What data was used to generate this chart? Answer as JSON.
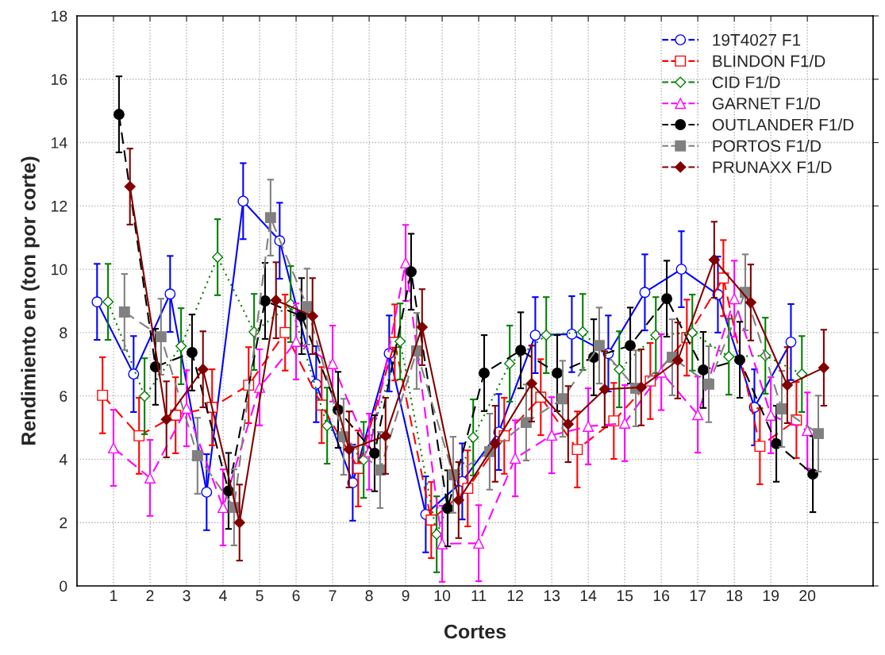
{
  "chart_data": {
    "type": "line",
    "xlabel": "Cortes",
    "ylabel": "Rendimiento en (ton por corte)",
    "xlim": [
      0,
      21.8
    ],
    "xticks": [
      1,
      2,
      3,
      4,
      5,
      6,
      7,
      8,
      9,
      10,
      11,
      12,
      13,
      14,
      15,
      16,
      17,
      18,
      19,
      20
    ],
    "ylim": [
      0,
      18
    ],
    "yticks": [
      0,
      2,
      4,
      6,
      8,
      10,
      12,
      14,
      16,
      18
    ],
    "grid": true,
    "legend": "top right",
    "series": [
      {
        "name": "19T4027 F1",
        "color": "#0000ff",
        "marker": "circle",
        "line_style": "solid",
        "x": [
          0.55,
          1.55,
          2.55,
          3.55,
          4.55,
          5.55,
          6.55,
          7.55,
          8.55,
          9.55,
          10.55,
          11.55,
          12.55,
          13.55,
          14.55,
          15.55,
          16.55,
          17.55,
          18.55,
          19.55
        ],
        "values": [
          8.97,
          6.69,
          9.22,
          2.96,
          12.15,
          10.9,
          6.37,
          3.26,
          7.34,
          2.26,
          3.3,
          4.86,
          7.92,
          7.95,
          7.34,
          9.27,
          10.0,
          9.2,
          5.64,
          7.7
        ],
        "errors": [
          1.2,
          1.2,
          1.2,
          1.2,
          1.2,
          1.2,
          1.2,
          1.2,
          1.2,
          1.2,
          1.2,
          1.2,
          1.2,
          1.2,
          1.2,
          1.2,
          1.2,
          1.2,
          1.2,
          1.2
        ]
      },
      {
        "name": "BLINDON F1/D",
        "color": "#ff0000",
        "marker": "square",
        "line_style": "dashed",
        "x": [
          0.7,
          1.7,
          2.7,
          3.7,
          4.7,
          5.7,
          6.7,
          7.7,
          8.7,
          9.7,
          10.7,
          11.7,
          12.7,
          13.7,
          14.7,
          15.7,
          16.7,
          17.7,
          18.7,
          19.7
        ],
        "values": [
          6.02,
          4.74,
          5.39,
          5.64,
          6.34,
          8.0,
          5.71,
          3.71,
          7.69,
          2.08,
          3.08,
          4.74,
          5.96,
          4.31,
          5.21,
          6.47,
          7.84,
          9.72,
          4.41,
          5.24
        ],
        "errors": [
          1.2,
          1.2,
          1.2,
          1.2,
          1.2,
          1.2,
          1.2,
          1.2,
          1.2,
          1.2,
          1.2,
          1.2,
          1.2,
          1.2,
          1.2,
          1.2,
          1.2,
          1.2,
          1.2,
          1.2
        ]
      },
      {
        "name": "CID F1/D",
        "color": "#008000",
        "marker": "diamond",
        "line_style": "dotted",
        "x": [
          0.85,
          1.85,
          2.85,
          3.85,
          4.85,
          5.85,
          6.85,
          7.85,
          8.85,
          9.85,
          10.85,
          11.85,
          12.85,
          13.85,
          14.85,
          15.85,
          16.85,
          17.85,
          18.85,
          19.85
        ],
        "values": [
          8.97,
          5.99,
          7.57,
          10.38,
          8.02,
          8.9,
          5.06,
          3.98,
          7.72,
          1.63,
          4.69,
          7.02,
          7.92,
          8.02,
          6.84,
          7.92,
          8.0,
          7.24,
          7.27,
          6.69
        ],
        "errors": [
          1.2,
          1.2,
          1.2,
          1.2,
          1.2,
          1.2,
          1.2,
          1.2,
          1.2,
          1.2,
          1.2,
          1.2,
          1.2,
          1.2,
          1.2,
          1.2,
          1.2,
          1.2,
          1.2,
          1.2
        ]
      },
      {
        "name": "GARNET F1/D",
        "color": "#ff00ff",
        "marker": "triangle",
        "line_style": "dashed",
        "x": [
          1,
          2,
          3,
          4,
          5,
          6,
          7,
          8,
          9,
          10,
          11,
          12,
          13,
          14,
          15,
          16,
          17,
          18,
          19,
          20
        ],
        "values": [
          4.36,
          3.41,
          5.61,
          2.48,
          6.27,
          7.72,
          7.02,
          4.24,
          10.2,
          1.33,
          1.35,
          4.03,
          4.76,
          5.04,
          5.14,
          6.75,
          5.41,
          9.07,
          5.39,
          4.91
        ],
        "errors": [
          1.2,
          1.2,
          1.2,
          1.2,
          1.2,
          1.2,
          1.2,
          1.2,
          1.2,
          1.2,
          1.2,
          1.2,
          1.2,
          1.2,
          1.2,
          1.2,
          1.2,
          1.2,
          1.2,
          1.2
        ]
      },
      {
        "name": "OUTLANDER F1/D",
        "color": "#000000",
        "marker": "circle",
        "line_style": "dashed",
        "x": [
          1.15,
          2.15,
          3.15,
          4.15,
          5.15,
          6.15,
          7.15,
          8.15,
          9.15,
          10.15,
          11.15,
          12.15,
          13.15,
          14.15,
          15.15,
          16.15,
          17.15,
          18.15,
          19.15,
          20.15
        ],
        "values": [
          14.89,
          6.92,
          7.37,
          3.0,
          9.0,
          8.52,
          5.56,
          4.19,
          9.92,
          2.45,
          6.72,
          7.44,
          6.72,
          7.22,
          7.59,
          9.07,
          6.82,
          7.14,
          4.49,
          3.53
        ],
        "errors": [
          1.2,
          1.2,
          1.2,
          1.2,
          1.2,
          1.2,
          1.2,
          1.2,
          1.2,
          1.2,
          1.2,
          1.2,
          1.2,
          1.2,
          1.2,
          1.2,
          1.2,
          1.2,
          1.2,
          1.2
        ]
      },
      {
        "name": "PORTOS F1/D",
        "color": "#808080",
        "marker": "square",
        "line_style": "dashed",
        "x": [
          1.3,
          2.3,
          3.3,
          4.3,
          5.3,
          6.3,
          7.3,
          8.3,
          9.3,
          10.3,
          11.3,
          12.3,
          13.3,
          14.3,
          15.3,
          16.3,
          17.3,
          18.3,
          19.3,
          20.3
        ],
        "values": [
          8.65,
          7.87,
          4.11,
          2.48,
          11.63,
          8.82,
          4.71,
          3.66,
          7.42,
          3.51,
          4.24,
          5.16,
          5.91,
          7.59,
          6.24,
          7.22,
          6.37,
          9.27,
          5.59,
          4.81
        ],
        "errors": [
          1.2,
          1.2,
          1.2,
          1.2,
          1.2,
          1.2,
          1.2,
          1.2,
          1.2,
          1.2,
          1.2,
          1.2,
          1.2,
          1.2,
          1.2,
          1.2,
          1.2,
          1.2,
          1.2,
          1.2
        ]
      },
      {
        "name": "PRUNAXX F1/D",
        "color": "#800000",
        "marker": "diamond",
        "line_style": "solid",
        "x": [
          1.45,
          2.45,
          3.45,
          4.45,
          5.45,
          6.45,
          7.45,
          8.45,
          9.45,
          10.45,
          11.45,
          12.45,
          13.45,
          14.45,
          15.45,
          16.45,
          17.45,
          18.45,
          19.45,
          20.45
        ],
        "values": [
          12.61,
          5.26,
          6.84,
          2.0,
          9.02,
          8.52,
          4.31,
          4.74,
          8.17,
          2.71,
          4.49,
          6.39,
          5.11,
          6.21,
          6.27,
          7.12,
          10.3,
          8.95,
          6.34,
          6.89
        ],
        "errors": [
          1.2,
          1.2,
          1.2,
          1.2,
          1.2,
          1.2,
          1.2,
          1.2,
          1.2,
          1.2,
          1.2,
          1.2,
          1.2,
          1.2,
          1.2,
          1.2,
          1.2,
          1.2,
          1.2,
          1.2
        ]
      }
    ]
  }
}
